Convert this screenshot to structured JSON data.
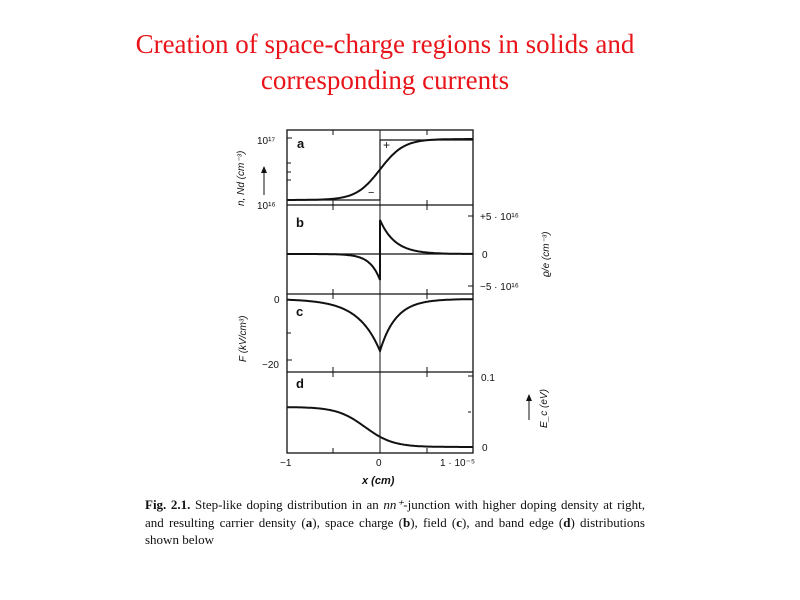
{
  "title": {
    "line1": "Creation of space-charge regions in solids and",
    "line2": "corresponding currents"
  },
  "figure": {
    "panels": {
      "a": {
        "label": "a",
        "y_axis": {
          "label": "n, Nd (cm⁻³)",
          "tick_top": "10¹⁷",
          "tick_bottom": "10¹⁶"
        },
        "plus_sign": "+",
        "minus_sign": "−"
      },
      "b": {
        "label": "b",
        "right_axis": {
          "label": "ϱ/e (cm⁻³)",
          "tick_top": "+5 · 10¹⁶",
          "tick_mid": "0",
          "tick_bottom": "−5 · 10¹⁶"
        }
      },
      "c": {
        "label": "c",
        "y_axis": {
          "label": "F (kV/cm³)",
          "tick_top": "0",
          "tick_bottom": "−20"
        }
      },
      "d": {
        "label": "d",
        "right_axis": {
          "label": "E_c (eV)",
          "tick_top": "0.1",
          "tick_bottom": "0"
        }
      }
    },
    "x_axis": {
      "label": "x (cm)",
      "ticks": [
        "−1",
        "0",
        "1 · 10⁻⁵"
      ]
    }
  },
  "caption": {
    "fig_label": "Fig. 2.1.",
    "text_1": " Step-like doping distribution in an ",
    "math": "nn⁺",
    "text_2": "-junction with higher doping density at right, and resulting carrier density (",
    "a": "a",
    "text_3": "), space charge (",
    "b": "b",
    "text_4": "), field (",
    "c": "c",
    "text_5": "), and band edge (",
    "d": "d",
    "text_6": ") distributions shown below"
  }
}
